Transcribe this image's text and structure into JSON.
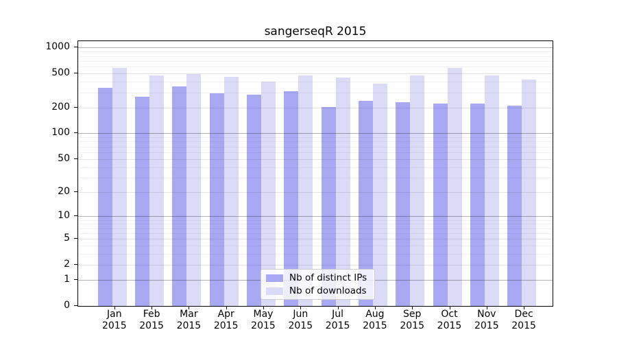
{
  "title": "sangerseqR 2015",
  "colors": {
    "distinct_ips_bar": "#a9a9f3",
    "downloads_bar": "#dbdbf8",
    "axis": "#000000",
    "legend_border": "#cccccc"
  },
  "legend": {
    "items": [
      {
        "label": "Nb of distinct IPs",
        "color": "#a9a9f3"
      },
      {
        "label": "Nb of downloads",
        "color": "#dbdbf8"
      }
    ]
  },
  "chart_data": {
    "type": "bar",
    "title": "sangerseqR 2015",
    "categories": [
      "Jan 2015",
      "Feb 2015",
      "Mar 2015",
      "Apr 2015",
      "May 2015",
      "Jun 2015",
      "Jul 2015",
      "Aug 2015",
      "Sep 2015",
      "Oct 2015",
      "Nov 2015",
      "Dec 2015"
    ],
    "series": [
      {
        "name": "Nb of distinct IPs",
        "color": "#a9a9f3",
        "values": [
          340,
          268,
          352,
          293,
          284,
          312,
          203,
          241,
          232,
          221,
          221,
          211
        ]
      },
      {
        "name": "Nb of downloads",
        "color": "#dbdbf8",
        "values": [
          580,
          472,
          488,
          457,
          399,
          470,
          445,
          380,
          472,
          585,
          470,
          423
        ]
      }
    ],
    "xlabel": "",
    "ylabel": "",
    "yscale": "log1p",
    "ylim": [
      0,
      1187
    ],
    "yticks": [
      1000,
      500,
      200,
      100,
      50,
      20,
      10,
      5,
      2,
      1,
      0
    ],
    "yticks_minor": [
      900,
      800,
      700,
      600,
      400,
      300,
      90,
      80,
      70,
      60,
      40,
      30,
      9,
      8,
      7,
      6,
      4,
      3
    ],
    "grid": "on, drawn above bars",
    "legend_position": "lower center inside plot"
  }
}
